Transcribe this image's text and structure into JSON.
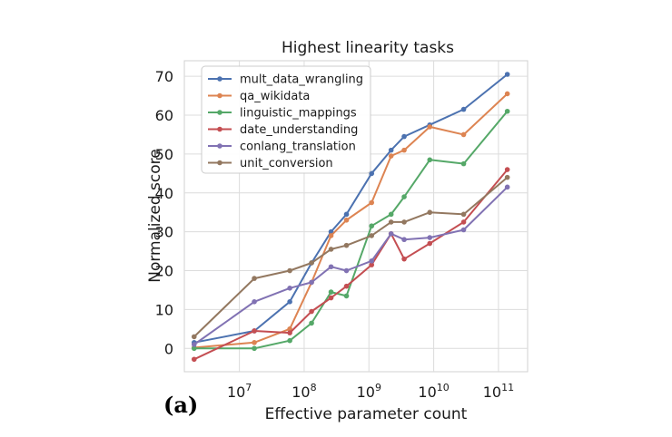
{
  "chart_data": {
    "type": "line",
    "title": "Highest linearity tasks",
    "xlabel": "Effective parameter count",
    "ylabel": "Normalized score",
    "xscale": "log",
    "xlim_log10": [
      6.15,
      11.45
    ],
    "ylim": [
      -6,
      74
    ],
    "xticks": [
      {
        "exp": 7,
        "base": "10",
        "sup": "7"
      },
      {
        "exp": 8,
        "base": "10",
        "sup": "8"
      },
      {
        "exp": 9,
        "base": "10",
        "sup": "9"
      },
      {
        "exp": 10,
        "base": "10",
        "sup": "10"
      },
      {
        "exp": 11,
        "base": "10",
        "sup": "11"
      }
    ],
    "yticks": [
      0,
      10,
      20,
      30,
      40,
      50,
      60,
      70
    ],
    "grid": true,
    "legend_position": "top-left",
    "panel_label": "(a)",
    "series": [
      {
        "name": "mult_data_wrangling",
        "color": "#4c72b0",
        "x": [
          2000000.0,
          17000000.0,
          60000000.0,
          130000000.0,
          260000000.0,
          450000000.0,
          1100000000.0,
          2200000000.0,
          3500000000.0,
          8700000000.0,
          29000000000.0,
          137000000000.0
        ],
        "y": [
          1.5,
          4.5,
          12,
          22,
          30,
          34.5,
          45,
          51,
          54.5,
          57.5,
          61.5,
          70.5
        ]
      },
      {
        "name": "qa_wikidata",
        "color": "#dd8452",
        "x": [
          2000000.0,
          17000000.0,
          60000000.0,
          130000000.0,
          260000000.0,
          450000000.0,
          1100000000.0,
          2200000000.0,
          3500000000.0,
          8700000000.0,
          29000000000.0,
          137000000000.0
        ],
        "y": [
          0.2,
          1.5,
          5,
          17,
          29,
          33,
          37.5,
          49.5,
          51,
          57,
          55,
          65.5
        ]
      },
      {
        "name": "linguistic_mappings",
        "color": "#55a868",
        "x": [
          2000000.0,
          17000000.0,
          60000000.0,
          130000000.0,
          260000000.0,
          450000000.0,
          1100000000.0,
          2200000000.0,
          3500000000.0,
          8700000000.0,
          29000000000.0,
          137000000000.0
        ],
        "y": [
          0,
          0,
          2,
          6.5,
          14.5,
          13.5,
          31.5,
          34.5,
          39,
          48.5,
          47.5,
          61
        ]
      },
      {
        "name": "date_understanding",
        "color": "#c44e52",
        "x": [
          2000000.0,
          17000000.0,
          60000000.0,
          130000000.0,
          260000000.0,
          450000000.0,
          1100000000.0,
          2200000000.0,
          3500000000.0,
          8700000000.0,
          29000000000.0,
          137000000000.0
        ],
        "y": [
          -2.8,
          4.5,
          4,
          9.5,
          13,
          16,
          21.5,
          29.5,
          23,
          27,
          32.5,
          46
        ]
      },
      {
        "name": "conlang_translation",
        "color": "#8172b3",
        "x": [
          2000000.0,
          17000000.0,
          60000000.0,
          130000000.0,
          260000000.0,
          450000000.0,
          1100000000.0,
          2200000000.0,
          3500000000.0,
          8700000000.0,
          29000000000.0,
          137000000000.0
        ],
        "y": [
          1,
          12,
          15.5,
          17,
          21,
          20,
          22.5,
          29.5,
          28,
          28.5,
          30.5,
          41.5
        ]
      },
      {
        "name": "unit_conversion",
        "color": "#937860",
        "x": [
          2000000.0,
          17000000.0,
          60000000.0,
          130000000.0,
          260000000.0,
          450000000.0,
          1100000000.0,
          2200000000.0,
          3500000000.0,
          8700000000.0,
          29000000000.0,
          137000000000.0
        ],
        "y": [
          3,
          18,
          20,
          22,
          25.5,
          26.5,
          29,
          32.5,
          32.5,
          35,
          34.5,
          44
        ]
      }
    ]
  }
}
